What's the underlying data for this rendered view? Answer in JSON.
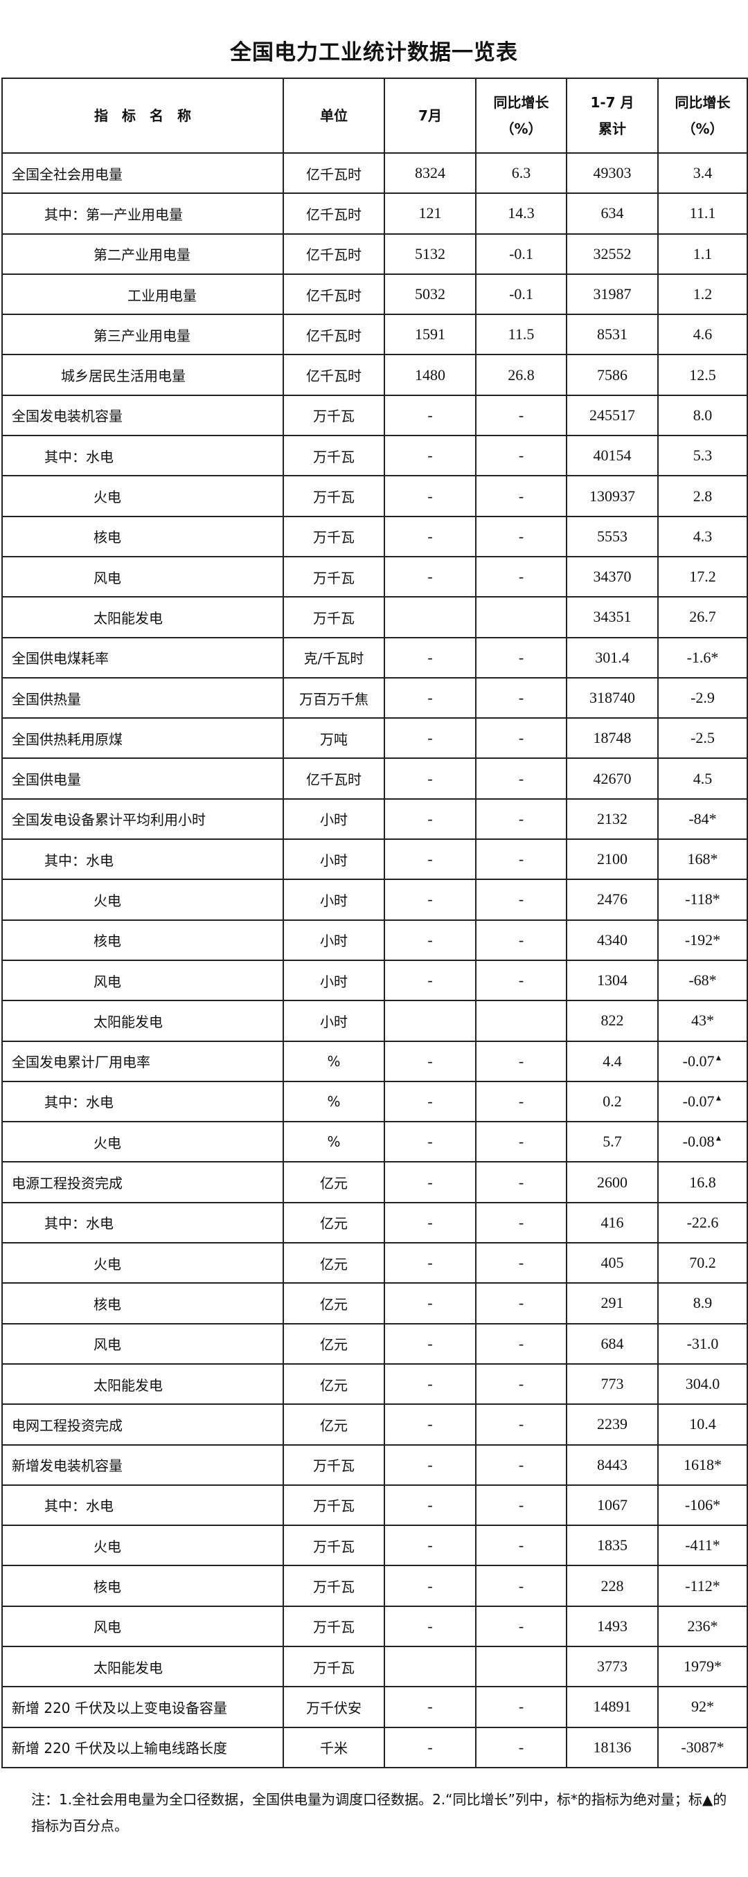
{
  "title": "全国电力工业统计数据一览表",
  "headers": {
    "name": "指　标　名　称",
    "unit": "单位",
    "month": "7月",
    "month_yoy_1": "同比增长",
    "month_yoy_2": "（%）",
    "cum_1": "1-7 月",
    "cum_2": "累计",
    "cum_yoy_1": "同比增长",
    "cum_yoy_2": "（%）"
  },
  "rows": [
    {
      "name": "全国全社会用电量",
      "level": 0,
      "unit": "亿千瓦时",
      "month": "8324",
      "month_yoy": "6.3",
      "cum": "49303",
      "cum_yoy": "3.4"
    },
    {
      "name": "其中：第一产业用电量",
      "level": 1,
      "unit": "亿千瓦时",
      "month": "121",
      "month_yoy": "14.3",
      "cum": "634",
      "cum_yoy": "11.1"
    },
    {
      "name": "第二产业用电量",
      "level": 2,
      "unit": "亿千瓦时",
      "month": "5132",
      "month_yoy": "-0.1",
      "cum": "32552",
      "cum_yoy": "1.1"
    },
    {
      "name": "工业用电量",
      "level": 3,
      "unit": "亿千瓦时",
      "month": "5032",
      "month_yoy": "-0.1",
      "cum": "31987",
      "cum_yoy": "1.2"
    },
    {
      "name": "第三产业用电量",
      "level": 2,
      "unit": "亿千瓦时",
      "month": "1591",
      "month_yoy": "11.5",
      "cum": "8531",
      "cum_yoy": "4.6"
    },
    {
      "name": "城乡居民生活用电量",
      "level": 15,
      "unit": "亿千瓦时",
      "month": "1480",
      "month_yoy": "26.8",
      "cum": "7586",
      "cum_yoy": "12.5"
    },
    {
      "name": "全国发电装机容量",
      "level": 0,
      "unit": "万千瓦",
      "month": "-",
      "month_yoy": "-",
      "cum": "245517",
      "cum_yoy": "8.0"
    },
    {
      "name": "其中：水电",
      "level": 1,
      "unit": "万千瓦",
      "month": "-",
      "month_yoy": "-",
      "cum": "40154",
      "cum_yoy": "5.3"
    },
    {
      "name": "火电",
      "level": 2,
      "unit": "万千瓦",
      "month": "-",
      "month_yoy": "-",
      "cum": "130937",
      "cum_yoy": "2.8"
    },
    {
      "name": "核电",
      "level": 2,
      "unit": "万千瓦",
      "month": "-",
      "month_yoy": "-",
      "cum": "5553",
      "cum_yoy": "4.3"
    },
    {
      "name": "风电",
      "level": 2,
      "unit": "万千瓦",
      "month": "-",
      "month_yoy": "-",
      "cum": "34370",
      "cum_yoy": "17.2"
    },
    {
      "name": "太阳能发电",
      "level": 2,
      "unit": "万千瓦",
      "month": "",
      "month_yoy": "",
      "cum": "34351",
      "cum_yoy": "26.7"
    },
    {
      "name": "全国供电煤耗率",
      "level": 0,
      "unit": "克/千瓦时",
      "month": "-",
      "month_yoy": "-",
      "cum": "301.4",
      "cum_yoy": "-1.6*"
    },
    {
      "name": "全国供热量",
      "level": 0,
      "unit": "万百万千焦",
      "month": "-",
      "month_yoy": "-",
      "cum": "318740",
      "cum_yoy": "-2.9"
    },
    {
      "name": "全国供热耗用原煤",
      "level": 0,
      "unit": "万吨",
      "month": "-",
      "month_yoy": "-",
      "cum": "18748",
      "cum_yoy": "-2.5"
    },
    {
      "name": "全国供电量",
      "level": 0,
      "unit": "亿千瓦时",
      "month": "-",
      "month_yoy": "-",
      "cum": "42670",
      "cum_yoy": "4.5"
    },
    {
      "name": "全国发电设备累计平均利用小时",
      "level": 0,
      "unit": "小时",
      "month": "-",
      "month_yoy": "-",
      "cum": "2132",
      "cum_yoy": "-84*"
    },
    {
      "name": "其中：水电",
      "level": 1,
      "unit": "小时",
      "month": "-",
      "month_yoy": "-",
      "cum": "2100",
      "cum_yoy": "168*"
    },
    {
      "name": "火电",
      "level": 2,
      "unit": "小时",
      "month": "-",
      "month_yoy": "-",
      "cum": "2476",
      "cum_yoy": "-118*"
    },
    {
      "name": "核电",
      "level": 2,
      "unit": "小时",
      "month": "-",
      "month_yoy": "-",
      "cum": "4340",
      "cum_yoy": "-192*"
    },
    {
      "name": "风电",
      "level": 2,
      "unit": "小时",
      "month": "-",
      "month_yoy": "-",
      "cum": "1304",
      "cum_yoy": "-68*"
    },
    {
      "name": "太阳能发电",
      "level": 2,
      "unit": "小时",
      "month": "",
      "month_yoy": "",
      "cum": "822",
      "cum_yoy": "43*"
    },
    {
      "name": "全国发电累计厂用电率",
      "level": 0,
      "unit": "%",
      "month": "-",
      "month_yoy": "-",
      "cum": "4.4",
      "cum_yoy": "-0.07",
      "mark": "▲"
    },
    {
      "name": "其中：水电",
      "level": 1,
      "unit": "%",
      "month": "-",
      "month_yoy": "-",
      "cum": "0.2",
      "cum_yoy": "-0.07",
      "mark": "▲"
    },
    {
      "name": "火电",
      "level": 2,
      "unit": "%",
      "month": "-",
      "month_yoy": "-",
      "cum": "5.7",
      "cum_yoy": "-0.08",
      "mark": "▲"
    },
    {
      "name": "电源工程投资完成",
      "level": 0,
      "unit": "亿元",
      "month": "-",
      "month_yoy": "-",
      "cum": "2600",
      "cum_yoy": "16.8"
    },
    {
      "name": "其中：水电",
      "level": 1,
      "unit": "亿元",
      "month": "-",
      "month_yoy": "-",
      "cum": "416",
      "cum_yoy": "-22.6"
    },
    {
      "name": "火电",
      "level": 2,
      "unit": "亿元",
      "month": "-",
      "month_yoy": "-",
      "cum": "405",
      "cum_yoy": "70.2"
    },
    {
      "name": "核电",
      "level": 2,
      "unit": "亿元",
      "month": "-",
      "month_yoy": "-",
      "cum": "291",
      "cum_yoy": "8.9"
    },
    {
      "name": "风电",
      "level": 2,
      "unit": "亿元",
      "month": "-",
      "month_yoy": "-",
      "cum": "684",
      "cum_yoy": "-31.0"
    },
    {
      "name": "太阳能发电",
      "level": 2,
      "unit": "亿元",
      "month": "-",
      "month_yoy": "-",
      "cum": "773",
      "cum_yoy": "304.0"
    },
    {
      "name": "电网工程投资完成",
      "level": 0,
      "unit": "亿元",
      "month": "-",
      "month_yoy": "-",
      "cum": "2239",
      "cum_yoy": "10.4"
    },
    {
      "name": "新增发电装机容量",
      "level": 0,
      "unit": "万千瓦",
      "month": "-",
      "month_yoy": "-",
      "cum": "8443",
      "cum_yoy": "1618*"
    },
    {
      "name": "其中：水电",
      "level": 1,
      "unit": "万千瓦",
      "month": "-",
      "month_yoy": "-",
      "cum": "1067",
      "cum_yoy": "-106*"
    },
    {
      "name": "火电",
      "level": 2,
      "unit": "万千瓦",
      "month": "-",
      "month_yoy": "-",
      "cum": "1835",
      "cum_yoy": "-411*"
    },
    {
      "name": "核电",
      "level": 2,
      "unit": "万千瓦",
      "month": "-",
      "month_yoy": "-",
      "cum": "228",
      "cum_yoy": "-112*"
    },
    {
      "name": "风电",
      "level": 2,
      "unit": "万千瓦",
      "month": "-",
      "month_yoy": "-",
      "cum": "1493",
      "cum_yoy": "236*"
    },
    {
      "name": "太阳能发电",
      "level": 2,
      "unit": "万千瓦",
      "month": "",
      "month_yoy": "",
      "cum": "3773",
      "cum_yoy": "1979*"
    },
    {
      "name": "新增 220 千伏及以上变电设备容量",
      "level": 0,
      "unit": "万千伏安",
      "month": "-",
      "month_yoy": "-",
      "cum": "14891",
      "cum_yoy": "92*"
    },
    {
      "name": "新增 220 千伏及以上输电线路长度",
      "level": 0,
      "unit": "千米",
      "month": "-",
      "month_yoy": "-",
      "cum": "18136",
      "cum_yoy": "-3087*"
    }
  ],
  "note": "注：1.全社会用电量为全口径数据，全国供电量为调度口径数据。2.“同比增长”列中，标*的指标为绝对量；标▲的指标为百分点。"
}
